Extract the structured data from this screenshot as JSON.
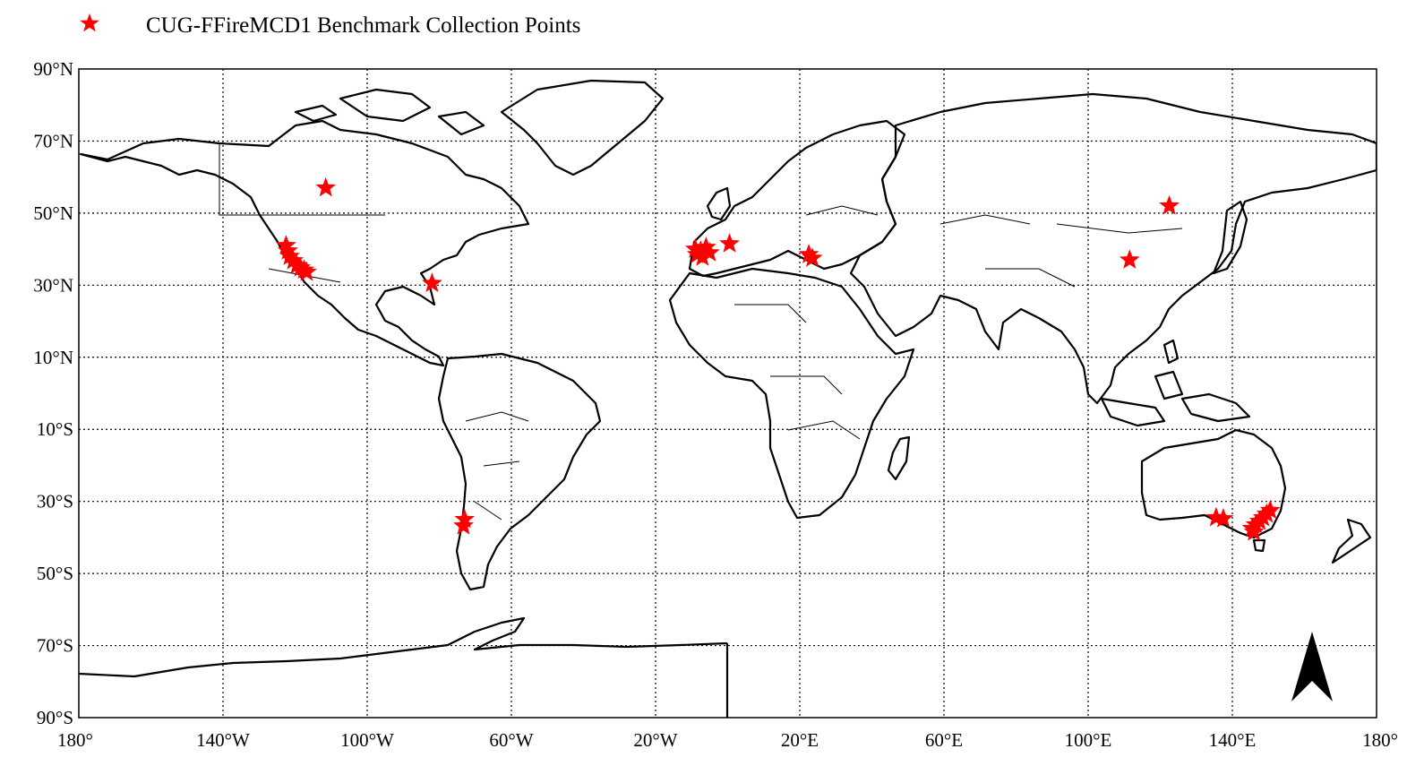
{
  "legend": {
    "label": "CUG-FFireMCD1 Benchmark Collection Points",
    "marker_color": "#ff0000",
    "marker_shape": "star"
  },
  "colors": {
    "marker": "#ff0000",
    "frame": "#000000",
    "land_outline": "#000000",
    "background": "#ffffff"
  },
  "map": {
    "projection": "equirectangular",
    "lon_range": [
      -180,
      180
    ],
    "lat_range": [
      -90,
      90
    ],
    "grid": "dotted",
    "north_arrow": "north-arrow-icon",
    "lat_ticks": [
      {
        "value": 90,
        "label": "90°N"
      },
      {
        "value": 70,
        "label": "70°N"
      },
      {
        "value": 50,
        "label": "50°N"
      },
      {
        "value": 30,
        "label": "30°N"
      },
      {
        "value": 10,
        "label": "10°N"
      },
      {
        "value": -10,
        "label": "10°S"
      },
      {
        "value": -30,
        "label": "30°S"
      },
      {
        "value": -50,
        "label": "50°S"
      },
      {
        "value": -70,
        "label": "70°S"
      },
      {
        "value": -90,
        "label": "90°S"
      }
    ],
    "lon_ticks": [
      {
        "value": -180,
        "label": "180°"
      },
      {
        "value": -140,
        "label": "140°W"
      },
      {
        "value": -100,
        "label": "100°W"
      },
      {
        "value": -60,
        "label": "60°W"
      },
      {
        "value": -20,
        "label": "20°W"
      },
      {
        "value": 20,
        "label": "20°E"
      },
      {
        "value": 60,
        "label": "60°E"
      },
      {
        "value": 100,
        "label": "100°E"
      },
      {
        "value": 140,
        "label": "140°E"
      },
      {
        "value": 180,
        "label": "180°"
      }
    ]
  },
  "points": [
    {
      "lon": -111.5,
      "lat": 57.0
    },
    {
      "lon": -122.5,
      "lat": 41.0
    },
    {
      "lon": -122.0,
      "lat": 39.5
    },
    {
      "lon": -121.5,
      "lat": 38.0
    },
    {
      "lon": -120.5,
      "lat": 36.8
    },
    {
      "lon": -119.5,
      "lat": 35.5
    },
    {
      "lon": -118.5,
      "lat": 34.8
    },
    {
      "lon": -117.5,
      "lat": 34.2
    },
    {
      "lon": -116.8,
      "lat": 33.6
    },
    {
      "lon": -82.0,
      "lat": 30.5
    },
    {
      "lon": -73.0,
      "lat": -35.0
    },
    {
      "lon": -73.3,
      "lat": -36.8
    },
    {
      "lon": -9.0,
      "lat": 40.0
    },
    {
      "lon": -8.5,
      "lat": 38.5
    },
    {
      "lon": -7.5,
      "lat": 39.5
    },
    {
      "lon": -6.0,
      "lat": 40.5
    },
    {
      "lon": -5.0,
      "lat": 39.0
    },
    {
      "lon": -7.0,
      "lat": 37.8
    },
    {
      "lon": 0.5,
      "lat": 41.5
    },
    {
      "lon": 22.5,
      "lat": 38.5
    },
    {
      "lon": 23.5,
      "lat": 37.5
    },
    {
      "lon": 111.5,
      "lat": 37.0
    },
    {
      "lon": 122.5,
      "lat": 52.0
    },
    {
      "lon": 135.5,
      "lat": -34.5
    },
    {
      "lon": 137.5,
      "lat": -34.8
    },
    {
      "lon": 145.5,
      "lat": -37.5
    },
    {
      "lon": 146.5,
      "lat": -36.5
    },
    {
      "lon": 147.5,
      "lat": -35.5
    },
    {
      "lon": 148.5,
      "lat": -34.5
    },
    {
      "lon": 149.5,
      "lat": -33.5
    },
    {
      "lon": 150.5,
      "lat": -32.5
    },
    {
      "lon": 146.0,
      "lat": -38.5
    }
  ]
}
